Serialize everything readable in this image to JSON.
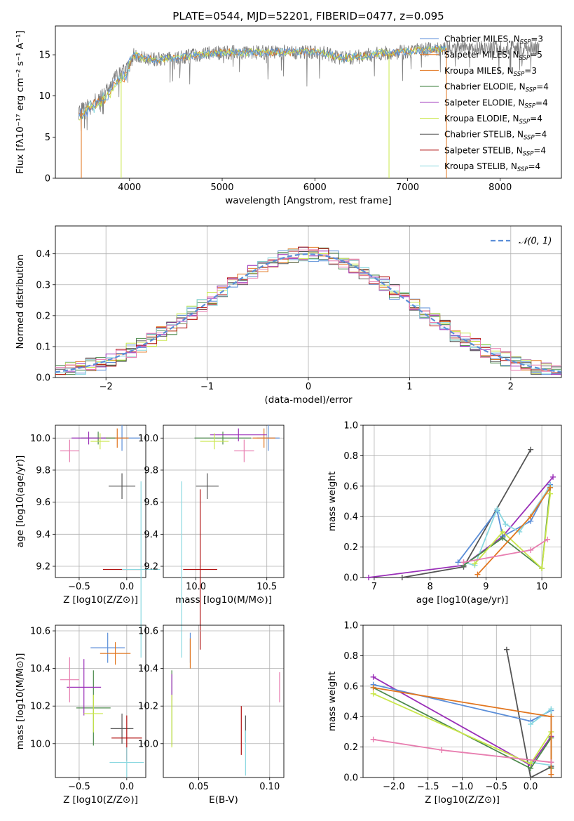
{
  "figure_title": "PLATE=0544, MJD=52201, FIBERID=0477, z=0.095",
  "colors": {
    "c0": "#5b8ed8",
    "c1": "#e2761f",
    "c2": "#4c8a4c",
    "c3": "#9a2fb8",
    "c4": "#c9e64a",
    "c5": "#555555",
    "c6": "#b01010",
    "c7": "#8ad8e0",
    "c8": "#e87eb0",
    "spec": "#7f7f7f",
    "grid": "#b0b0b0",
    "gauss": "#5b8ed8"
  },
  "chart_data": [
    {
      "id": "spectrum",
      "type": "line",
      "xlabel": "wavelength [Angstrom, rest frame]",
      "ylabel": "Flux [fλ10⁻¹⁷ erg cm⁻² s⁻¹ A⁻¹]",
      "xlim": [
        3200,
        8660
      ],
      "ylim": [
        0,
        18.5
      ],
      "xticks": [
        4000,
        5000,
        6000,
        7000,
        8000
      ],
      "yticks": [
        0,
        5,
        10,
        15
      ],
      "grid": false,
      "legend_position": "top-right",
      "legend": [
        "Chabrier MILES, N_SSP=3",
        "Salpeter MILES, N_SSP=5",
        "Kroupa MILES, N_SSP=3",
        "Chabrier ELODIE, N_SSP=4",
        "Salpeter ELODIE, N_SSP=4",
        "Kroupa ELODIE, N_SSP=4",
        "Chabrier STELIB, N_SSP=4",
        "Salpeter STELIB, N_SSP=4",
        "Kroupa STELIB, N_SSP=4"
      ],
      "continuum": {
        "x": [
          3450,
          3550,
          3650,
          3750,
          3850,
          3950,
          4050,
          4150,
          4300,
          4500,
          4700,
          4900,
          5100,
          5300,
          5500,
          5700,
          5900,
          6100,
          6300,
          6500,
          6700,
          6900,
          7100,
          7300,
          7420
        ],
        "y": [
          8.0,
          9.0,
          9.6,
          10.5,
          12.2,
          13.2,
          15.0,
          14.6,
          14.4,
          14.6,
          14.9,
          15.2,
          15.3,
          15.3,
          15.3,
          15.3,
          15.4,
          15.2,
          14.6,
          14.8,
          15.2,
          15.3,
          15.5,
          15.7,
          15.8
        ]
      },
      "drops": [
        {
          "label": "Kroupa MILES",
          "x": 3480,
          "y": 0
        },
        {
          "label": "Kroupa ELODIE",
          "x": 3910,
          "y": 0
        },
        {
          "label": "Kroupa ELODIE",
          "x": 6800,
          "y": 0
        },
        {
          "label": "Salpeter MILES",
          "x": 7420,
          "y": 0
        }
      ]
    },
    {
      "id": "residual_distribution",
      "type": "step",
      "xlabel": "(data-model)/error",
      "ylabel": "Normed distribution",
      "xlim": [
        -2.5,
        2.5
      ],
      "ylim": [
        0,
        0.49
      ],
      "xticks": [
        -2,
        -1,
        0,
        1,
        2
      ],
      "yticks": [
        0.0,
        0.1,
        0.2,
        0.3,
        0.4
      ],
      "grid": true,
      "legend_position": "top-right",
      "legend": [
        "𝒩(0, 1)"
      ],
      "bin_width": 0.1,
      "gaussian": {
        "mu": 0,
        "sigma": 1
      }
    },
    {
      "id": "age_vs_Z",
      "type": "scatter",
      "xlabel": "Z [log10(Z/Z⊙)]",
      "ylabel": "age  [log10(age/yr)]",
      "xlim": [
        -0.75,
        0.2
      ],
      "ylim": [
        9.13,
        10.08
      ],
      "xticks": [
        -0.5,
        0.0
      ],
      "yticks": [
        9.2,
        9.4,
        9.6,
        9.8,
        10.0
      ],
      "grid": true,
      "points": [
        {
          "x": -0.05,
          "y": 10.0,
          "xerr": 0.19,
          "yerr": 0.08,
          "color": "c0"
        },
        {
          "x": -0.1,
          "y": 10.0,
          "xerr": 0.12,
          "yerr": 0.06,
          "color": "c1"
        },
        {
          "x": -0.3,
          "y": 10.0,
          "xerr": 0.18,
          "yerr": 0.04,
          "color": "c2"
        },
        {
          "x": -0.4,
          "y": 10.0,
          "xerr": 0.18,
          "yerr": 0.04,
          "color": "c3"
        },
        {
          "x": -0.28,
          "y": 9.98,
          "xerr": 0.1,
          "yerr": 0.05,
          "color": "c4"
        },
        {
          "x": -0.05,
          "y": 9.7,
          "xerr": 0.14,
          "yerr": 0.08,
          "color": "c5"
        },
        {
          "x": -0.05,
          "y": 9.18,
          "xerr": 0.2,
          "yerr": 0.0,
          "color": "c6"
        },
        {
          "x": 0.15,
          "y": 9.18,
          "xerr": 0.2,
          "yerr": 0.55,
          "color": "c7"
        },
        {
          "x": -0.6,
          "y": 9.92,
          "xerr": 0.1,
          "yerr": 0.07,
          "color": "c8"
        }
      ]
    },
    {
      "id": "age_vs_mass",
      "type": "scatter",
      "xlabel": "mass [log10(M/M⊙)]",
      "ylabel": "",
      "xlim": [
        9.77,
        10.62
      ],
      "ylim": [
        9.13,
        10.08
      ],
      "xticks": [
        10.0,
        10.5
      ],
      "yticks": [
        9.2,
        9.4,
        9.6,
        9.8,
        10.0
      ],
      "grid": true,
      "points": [
        {
          "x": 10.51,
          "y": 10.0,
          "xerr": 0.08,
          "yerr": 0.08,
          "color": "c0"
        },
        {
          "x": 10.48,
          "y": 10.0,
          "xerr": 0.08,
          "yerr": 0.06,
          "color": "c1"
        },
        {
          "x": 10.19,
          "y": 10.0,
          "xerr": 0.2,
          "yerr": 0.04,
          "color": "c2"
        },
        {
          "x": 10.3,
          "y": 10.02,
          "xerr": 0.2,
          "yerr": 0.04,
          "color": "c3"
        },
        {
          "x": 10.13,
          "y": 9.98,
          "xerr": 0.1,
          "yerr": 0.05,
          "color": "c4"
        },
        {
          "x": 10.08,
          "y": 9.7,
          "xerr": 0.08,
          "yerr": 0.08,
          "color": "c5"
        },
        {
          "x": 10.03,
          "y": 9.18,
          "xerr": 0.12,
          "yerr": 0.5,
          "color": "c6"
        },
        {
          "x": 9.9,
          "y": 9.18,
          "xerr": 0.0,
          "yerr": 0.55,
          "color": "c7"
        },
        {
          "x": 10.34,
          "y": 9.92,
          "xerr": 0.07,
          "yerr": 0.07,
          "color": "c8"
        }
      ]
    },
    {
      "id": "massweight_vs_age",
      "type": "line",
      "xlabel": "age  [log10(age/yr)]",
      "ylabel": "mass weight",
      "xlim": [
        6.8,
        10.35
      ],
      "ylim": [
        0,
        1.0
      ],
      "xticks": [
        7,
        8,
        9,
        10
      ],
      "yticks": [
        0.0,
        0.2,
        0.4,
        0.6,
        0.8,
        1.0
      ],
      "grid": true,
      "series": [
        {
          "color": "c5",
          "x": [
            7.5,
            8.6,
            9.8
          ],
          "y": [
            0.0,
            0.07,
            0.84
          ]
        },
        {
          "color": "c3",
          "x": [
            6.9,
            8.6,
            9.3,
            10.2
          ],
          "y": [
            0.0,
            0.08,
            0.27,
            0.66
          ]
        },
        {
          "color": "c0",
          "x": [
            8.5,
            9.2,
            9.3,
            9.8,
            10.15
          ],
          "y": [
            0.1,
            0.44,
            0.27,
            0.37,
            0.61
          ]
        },
        {
          "color": "c7",
          "x": [
            8.6,
            8.8,
            9.2,
            9.35,
            9.6,
            10.15
          ],
          "y": [
            0.1,
            0.08,
            0.45,
            0.35,
            0.3,
            0.6
          ]
        },
        {
          "color": "c2",
          "x": [
            8.6,
            9.3,
            10.0,
            10.15
          ],
          "y": [
            0.08,
            0.26,
            0.06,
            0.59
          ]
        },
        {
          "color": "c4",
          "x": [
            8.8,
            9.3,
            10.0,
            10.15
          ],
          "y": [
            0.09,
            0.3,
            0.06,
            0.55
          ]
        },
        {
          "color": "c1",
          "x": [
            8.85,
            9.8,
            10.15
          ],
          "y": [
            0.02,
            0.4,
            0.59
          ]
        },
        {
          "color": "c8",
          "x": [
            8.6,
            9.8,
            10.1
          ],
          "y": [
            0.1,
            0.18,
            0.25
          ]
        }
      ]
    },
    {
      "id": "mass_vs_Z",
      "type": "scatter",
      "xlabel": "Z [log10(Z/Z⊙)]",
      "ylabel": "mass [log10(M/M⊙)]",
      "xlim": [
        -0.75,
        0.2
      ],
      "ylim": [
        9.82,
        10.63
      ],
      "xticks": [
        -0.5,
        0.0
      ],
      "yticks": [
        10.0,
        10.2,
        10.4,
        10.6
      ],
      "grid": true,
      "points": [
        {
          "x": -0.2,
          "y": 10.51,
          "xerr": 0.18,
          "yerr": 0.08,
          "color": "c0"
        },
        {
          "x": -0.12,
          "y": 10.48,
          "xerr": 0.16,
          "yerr": 0.06,
          "color": "c1"
        },
        {
          "x": -0.35,
          "y": 10.19,
          "xerr": 0.18,
          "yerr": 0.2,
          "color": "c2"
        },
        {
          "x": -0.45,
          "y": 10.3,
          "xerr": 0.18,
          "yerr": 0.15,
          "color": "c3"
        },
        {
          "x": -0.35,
          "y": 10.16,
          "xerr": 0.1,
          "yerr": 0.1,
          "color": "c4"
        },
        {
          "x": -0.05,
          "y": 10.08,
          "xerr": 0.12,
          "yerr": 0.08,
          "color": "c5"
        },
        {
          "x": 0.0,
          "y": 10.03,
          "xerr": 0.16,
          "yerr": 0.12,
          "color": "c6"
        },
        {
          "x": 0.0,
          "y": 9.9,
          "xerr": 0.18,
          "yerr": 0.08,
          "color": "c7"
        },
        {
          "x": -0.6,
          "y": 10.34,
          "xerr": 0.1,
          "yerr": 0.12,
          "color": "c8"
        }
      ]
    },
    {
      "id": "mass_vs_EBV",
      "type": "scatter",
      "xlabel": "E(B-V)",
      "ylabel": "",
      "xlim": [
        0.025,
        0.11
      ],
      "ylim": [
        9.82,
        10.63
      ],
      "xticks": [
        0.05,
        0.1
      ],
      "yticks": [
        10.0,
        10.2,
        10.4,
        10.6
      ],
      "grid": true,
      "points": [
        {
          "x": 0.044,
          "y": 10.51,
          "xerr": 0,
          "yerr": 0.08,
          "color": "c0"
        },
        {
          "x": 0.044,
          "y": 10.48,
          "xerr": 0,
          "yerr": 0.08,
          "color": "c1"
        },
        {
          "x": 0.031,
          "y": 10.19,
          "xerr": 0,
          "yerr": 0.2,
          "color": "c2"
        },
        {
          "x": 0.031,
          "y": 10.3,
          "xerr": 0,
          "yerr": 0.07,
          "color": "c3"
        },
        {
          "x": 0.031,
          "y": 10.12,
          "xerr": 0,
          "yerr": 0.14,
          "color": "c4"
        },
        {
          "x": 0.083,
          "y": 10.08,
          "xerr": 0,
          "yerr": 0.07,
          "color": "c5"
        },
        {
          "x": 0.08,
          "y": 10.07,
          "xerr": 0,
          "yerr": 0.13,
          "color": "c6"
        },
        {
          "x": 0.083,
          "y": 9.95,
          "xerr": 0,
          "yerr": 0.12,
          "color": "c7"
        },
        {
          "x": 0.107,
          "y": 10.3,
          "xerr": 0,
          "yerr": 0.08,
          "color": "c8"
        }
      ]
    },
    {
      "id": "massweight_vs_Z",
      "type": "line",
      "xlabel": "Z [log10(Z/Z⊙)]",
      "ylabel": "mass weight",
      "xlim": [
        -2.45,
        0.45
      ],
      "ylim": [
        0,
        1.0
      ],
      "xticks": [
        -2.0,
        -1.5,
        -1.0,
        -0.5,
        0.0
      ],
      "yticks": [
        0.0,
        0.2,
        0.4,
        0.6,
        0.8,
        1.0
      ],
      "grid": true,
      "series": [
        {
          "color": "c5",
          "x": [
            -0.35,
            0.0,
            0.3
          ],
          "y": [
            0.84,
            0.0,
            0.07
          ]
        },
        {
          "color": "c3",
          "x": [
            -2.3,
            0.0,
            0.3
          ],
          "y": [
            0.66,
            0.08,
            0.27
          ]
        },
        {
          "color": "c0",
          "x": [
            -2.3,
            0.0,
            0.3,
            0.3
          ],
          "y": [
            0.61,
            0.37,
            0.44,
            0.1
          ]
        },
        {
          "color": "c7",
          "x": [
            0.0,
            0.3,
            0.3,
            0.0
          ],
          "y": [
            0.35,
            0.45,
            0.08,
            0.1
          ]
        },
        {
          "color": "c2",
          "x": [
            -2.3,
            0.0,
            0.3,
            0.3
          ],
          "y": [
            0.59,
            0.06,
            0.26,
            0.06
          ]
        },
        {
          "color": "c4",
          "x": [
            -2.3,
            0.0,
            0.3
          ],
          "y": [
            0.55,
            0.09,
            0.3
          ]
        },
        {
          "color": "c1",
          "x": [
            -2.3,
            0.3,
            0.3
          ],
          "y": [
            0.59,
            0.4,
            0.02
          ]
        },
        {
          "color": "c8",
          "x": [
            -2.3,
            -1.3,
            0.3
          ],
          "y": [
            0.25,
            0.18,
            0.1
          ]
        }
      ]
    }
  ]
}
